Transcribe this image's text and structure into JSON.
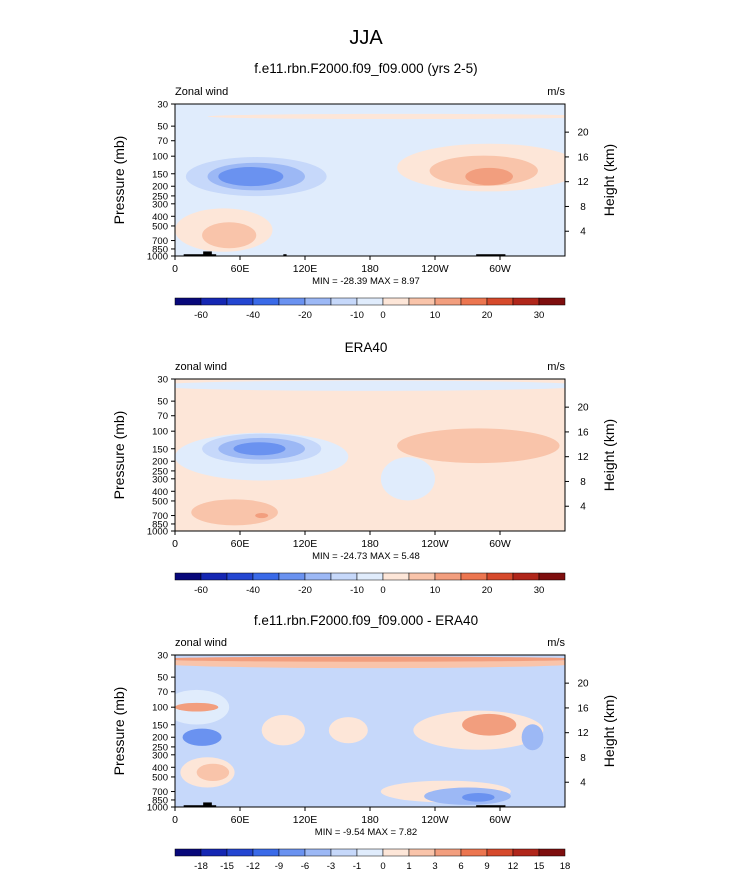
{
  "figure": {
    "title": "JJA"
  },
  "palettes": {
    "full": [
      "#08087a",
      "#1527b3",
      "#2446d1",
      "#3a6ae8",
      "#6a92f0",
      "#9cb8f5",
      "#c6d8fa",
      "#e0ecfc",
      "#fde6d8",
      "#f9c4aa",
      "#f29e7e",
      "#ec7650",
      "#d64a2c",
      "#b0261a",
      "#7e0e0e"
    ],
    "diff": [
      "#08087a",
      "#1527b3",
      "#2446d1",
      "#3a6ae8",
      "#6a92f0",
      "#9cb8f5",
      "#c6d8fa",
      "#e0ecfc",
      "#fde6d8",
      "#f9c4aa",
      "#f29e7e",
      "#ec7650",
      "#d64a2c",
      "#b0261a",
      "#7e0e0e"
    ]
  },
  "chart_data": [
    {
      "type": "heatmap",
      "title": "f.e11.rbn.F2000.f09_f09.000 (yrs 2-5)",
      "left_label": "Zonal wind",
      "right_label": "m/s",
      "ylabel": "Pressure (mb)",
      "ylabel_right": "Height (km)",
      "x_ticks": [
        "0",
        "60E",
        "120E",
        "180",
        "120W",
        "60W"
      ],
      "x_tick_values": [
        0,
        60,
        120,
        180,
        240,
        300
      ],
      "xlim": [
        0,
        360
      ],
      "y_ticks": [
        "30",
        "50",
        "70",
        "100",
        "150",
        "200",
        "250",
        "300",
        "400",
        "500",
        "700",
        "850",
        "1000"
      ],
      "y_tick_values": [
        30,
        50,
        70,
        100,
        150,
        200,
        250,
        300,
        400,
        500,
        700,
        850,
        1000
      ],
      "ylim": [
        1000,
        30
      ],
      "y_scale": "log",
      "height_ticks": [
        "20",
        "16",
        "12",
        "8",
        "4"
      ],
      "height_tick_values": [
        20,
        16,
        12,
        8,
        4
      ],
      "stats": "MIN = -28.39  MAX =  8.97",
      "min": -28.39,
      "max": 8.97,
      "colorbar_labels": [
        "-60",
        "-40",
        "-20",
        "-10",
        "0",
        "10",
        "20",
        "30"
      ],
      "colorbar_label_index": [
        1,
        3,
        5,
        7,
        8,
        10,
        12,
        14
      ],
      "palette": "full",
      "background_level": 7,
      "blobs": [
        {
          "level": 8,
          "lon": 290,
          "p": 130,
          "rx": 85,
          "ry": 0.55
        },
        {
          "level": 9,
          "lon": 285,
          "p": 140,
          "rx": 50,
          "ry": 0.35
        },
        {
          "level": 10,
          "lon": 290,
          "p": 160,
          "rx": 22,
          "ry": 0.2
        },
        {
          "level": 8,
          "lon": 45,
          "p": 550,
          "rx": 45,
          "ry": 0.5
        },
        {
          "level": 9,
          "lon": 50,
          "p": 620,
          "rx": 25,
          "ry": 0.3
        },
        {
          "level": 8,
          "lon": 210,
          "p": 40,
          "rx": 180,
          "ry": 0.06
        },
        {
          "level": 6,
          "lon": 75,
          "p": 160,
          "rx": 65,
          "ry": 0.45
        },
        {
          "level": 5,
          "lon": 75,
          "p": 160,
          "rx": 45,
          "ry": 0.32
        },
        {
          "level": 4,
          "lon": 70,
          "p": 160,
          "rx": 30,
          "ry": 0.22
        }
      ],
      "topography": [
        {
          "lon0": 8,
          "lon1": 38,
          "p_top": 960
        },
        {
          "lon0": 26,
          "lon1": 34,
          "p_top": 900
        },
        {
          "lon0": 100,
          "lon1": 103,
          "p_top": 960
        },
        {
          "lon0": 278,
          "lon1": 305,
          "p_top": 960
        }
      ]
    },
    {
      "type": "heatmap",
      "title": "ERA40",
      "left_label": "zonal wind",
      "right_label": "m/s",
      "ylabel": "Pressure (mb)",
      "ylabel_right": "Height (km)",
      "x_ticks": [
        "0",
        "60E",
        "120E",
        "180",
        "120W",
        "60W"
      ],
      "x_tick_values": [
        0,
        60,
        120,
        180,
        240,
        300
      ],
      "xlim": [
        0,
        360
      ],
      "y_ticks": [
        "30",
        "50",
        "70",
        "100",
        "150",
        "200",
        "250",
        "300",
        "400",
        "500",
        "700",
        "850",
        "1000"
      ],
      "y_tick_values": [
        30,
        50,
        70,
        100,
        150,
        200,
        250,
        300,
        400,
        500,
        700,
        850,
        1000
      ],
      "ylim": [
        1000,
        30
      ],
      "y_scale": "log",
      "height_ticks": [
        "20",
        "16",
        "12",
        "8",
        "4"
      ],
      "height_tick_values": [
        20,
        16,
        12,
        8,
        4
      ],
      "stats": "MIN = -24.73  MAX =  5.48",
      "min": -24.73,
      "max": 5.48,
      "colorbar_labels": [
        "-60",
        "-40",
        "-20",
        "-10",
        "0",
        "10",
        "20",
        "30"
      ],
      "colorbar_label_index": [
        1,
        3,
        5,
        7,
        8,
        10,
        12,
        14
      ],
      "palette": "full",
      "background_level": 8,
      "blobs": [
        {
          "level": 7,
          "lon": 180,
          "p": 35,
          "rx": 200,
          "ry": 0.12
        },
        {
          "level": 7,
          "lon": 80,
          "p": 180,
          "rx": 80,
          "ry": 0.55
        },
        {
          "level": 7,
          "lon": 215,
          "p": 300,
          "rx": 25,
          "ry": 0.5
        },
        {
          "level": 6,
          "lon": 80,
          "p": 150,
          "rx": 55,
          "ry": 0.35
        },
        {
          "level": 5,
          "lon": 80,
          "p": 150,
          "rx": 40,
          "ry": 0.25
        },
        {
          "level": 4,
          "lon": 78,
          "p": 150,
          "rx": 24,
          "ry": 0.15
        },
        {
          "level": 9,
          "lon": 280,
          "p": 140,
          "rx": 75,
          "ry": 0.4
        },
        {
          "level": 9,
          "lon": 55,
          "p": 650,
          "rx": 40,
          "ry": 0.3
        },
        {
          "level": 10,
          "lon": 80,
          "p": 700,
          "rx": 6,
          "ry": 0.06
        }
      ],
      "topography": []
    },
    {
      "type": "heatmap",
      "title": "f.e11.rbn.F2000.f09_f09.000 - ERA40",
      "left_label": "zonal wind",
      "right_label": "m/s",
      "ylabel": "Pressure (mb)",
      "ylabel_right": "Height (km)",
      "x_ticks": [
        "0",
        "60E",
        "120E",
        "180",
        "120W",
        "60W"
      ],
      "x_tick_values": [
        0,
        60,
        120,
        180,
        240,
        300
      ],
      "xlim": [
        0,
        360
      ],
      "y_ticks": [
        "30",
        "50",
        "70",
        "100",
        "150",
        "200",
        "250",
        "300",
        "400",
        "500",
        "700",
        "850",
        "1000"
      ],
      "y_tick_values": [
        30,
        50,
        70,
        100,
        150,
        200,
        250,
        300,
        400,
        500,
        700,
        850,
        1000
      ],
      "ylim": [
        1000,
        30
      ],
      "y_scale": "log",
      "height_ticks": [
        "20",
        "16",
        "12",
        "8",
        "4"
      ],
      "height_tick_values": [
        20,
        16,
        12,
        8,
        4
      ],
      "stats": "MIN = -9.54  MAX =  7.82",
      "min": -9.54,
      "max": 7.82,
      "colorbar_labels": [
        "-18",
        "-15",
        "-12",
        "-9",
        "-6",
        "-3",
        "-1",
        "0",
        "1",
        "3",
        "6",
        "9",
        "12",
        "15",
        "18"
      ],
      "colorbar_label_index": [
        1,
        2,
        3,
        4,
        5,
        6,
        7,
        8,
        9,
        10,
        11,
        12,
        13,
        14,
        15
      ],
      "palette": "diff",
      "background_level": 6,
      "blobs": [
        {
          "level": 9,
          "lon": 180,
          "p": 36,
          "rx": 200,
          "ry": 0.12
        },
        {
          "level": 10,
          "lon": 180,
          "p": 33,
          "rx": 200,
          "ry": 0.06
        },
        {
          "level": 7,
          "lon": 20,
          "p": 100,
          "rx": 30,
          "ry": 0.4
        },
        {
          "level": 10,
          "lon": 20,
          "p": 100,
          "rx": 20,
          "ry": 0.1
        },
        {
          "level": 4,
          "lon": 25,
          "p": 200,
          "rx": 18,
          "ry": 0.2
        },
        {
          "level": 8,
          "lon": 30,
          "p": 450,
          "rx": 25,
          "ry": 0.35
        },
        {
          "level": 9,
          "lon": 35,
          "p": 450,
          "rx": 15,
          "ry": 0.2
        },
        {
          "level": 8,
          "lon": 100,
          "p": 170,
          "rx": 20,
          "ry": 0.35
        },
        {
          "level": 8,
          "lon": 160,
          "p": 170,
          "rx": 18,
          "ry": 0.3
        },
        {
          "level": 8,
          "lon": 280,
          "p": 170,
          "rx": 60,
          "ry": 0.45
        },
        {
          "level": 10,
          "lon": 290,
          "p": 150,
          "rx": 25,
          "ry": 0.25
        },
        {
          "level": 8,
          "lon": 250,
          "p": 700,
          "rx": 60,
          "ry": 0.25
        },
        {
          "level": 5,
          "lon": 270,
          "p": 780,
          "rx": 40,
          "ry": 0.2
        },
        {
          "level": 4,
          "lon": 280,
          "p": 800,
          "rx": 15,
          "ry": 0.1
        },
        {
          "level": 5,
          "lon": 330,
          "p": 200,
          "rx": 10,
          "ry": 0.3
        }
      ],
      "topography": [
        {
          "lon0": 8,
          "lon1": 38,
          "p_top": 960
        },
        {
          "lon0": 26,
          "lon1": 34,
          "p_top": 900
        },
        {
          "lon0": 278,
          "lon1": 305,
          "p_top": 960
        }
      ]
    }
  ]
}
